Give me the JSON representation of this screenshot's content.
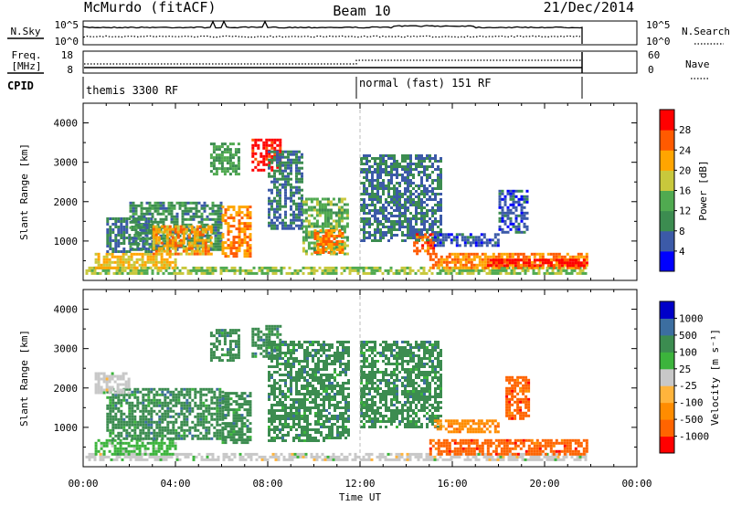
{
  "header": {
    "station": "McMurdo (fitACF)",
    "beam": "Beam 10",
    "date": "21/Dec/2014"
  },
  "noise_panel": {
    "left_label": "N.Sky",
    "right_label": "N.Search",
    "left_ticks": [
      "10^5",
      "10^0"
    ],
    "right_ticks": [
      "10^5",
      "10^0"
    ]
  },
  "freq_panel": {
    "left_label_1": "Freq.",
    "left_label_2": "[MHz]",
    "right_label": "Nave",
    "left_ticks": [
      "18",
      "8"
    ],
    "right_ticks": [
      "60",
      "0"
    ]
  },
  "cpid_panel": {
    "label": "CPID",
    "segments": [
      "themis 3300 RF",
      "normal (fast) 151 RF"
    ]
  },
  "colors": {
    "power": [
      "#0000ff",
      "#3c5aa8",
      "#3c8c50",
      "#50aa50",
      "#c8c83c",
      "#ffa500",
      "#ff5a00",
      "#ff0000"
    ],
    "velocity": [
      "#ff0000",
      "#ff6400",
      "#ff8c00",
      "#ffb43c",
      "#c8c8c8",
      "#3cb43c",
      "#3c8c50",
      "#3c6ea0",
      "#0000c8"
    ]
  },
  "chart_data": [
    {
      "type": "heatmap",
      "name": "power",
      "ylabel": "Slant Range [km]",
      "yticks": [
        "1000",
        "2000",
        "3000",
        "4000"
      ],
      "ylim": [
        0,
        4500
      ],
      "xlim": [
        0,
        24
      ],
      "colorbar": {
        "label": "Power [dB]",
        "ticks": [
          "4",
          "8",
          "12",
          "16",
          "20",
          "24",
          "28"
        ],
        "range": [
          0,
          32
        ]
      },
      "echo_regions": [
        {
          "t0": 0.1,
          "t1": 21.8,
          "r0": 180,
          "r1": 350,
          "value": 16
        },
        {
          "t0": 0.5,
          "t1": 4.0,
          "r0": 350,
          "r1": 700,
          "value": 20
        },
        {
          "t0": 1.0,
          "t1": 3.0,
          "r0": 700,
          "r1": 1600,
          "value": 8
        },
        {
          "t0": 2.0,
          "t1": 6.0,
          "r0": 800,
          "r1": 2000,
          "value": 10
        },
        {
          "t0": 3.0,
          "t1": 5.5,
          "r0": 650,
          "r1": 1400,
          "value": 22
        },
        {
          "t0": 6.0,
          "t1": 7.2,
          "r0": 600,
          "r1": 1900,
          "value": 24
        },
        {
          "t0": 5.5,
          "t1": 6.8,
          "r0": 2700,
          "r1": 3500,
          "value": 12
        },
        {
          "t0": 7.3,
          "t1": 8.5,
          "r0": 2800,
          "r1": 3600,
          "value": 30
        },
        {
          "t0": 8.0,
          "t1": 9.5,
          "r0": 1300,
          "r1": 3300,
          "value": 8
        },
        {
          "t0": 9.5,
          "t1": 11.5,
          "r0": 650,
          "r1": 2100,
          "value": 14
        },
        {
          "t0": 10.0,
          "t1": 11.2,
          "r0": 700,
          "r1": 1300,
          "value": 24
        },
        {
          "t0": 12.0,
          "t1": 15.5,
          "r0": 1000,
          "r1": 3200,
          "value": 8
        },
        {
          "t0": 14.3,
          "t1": 15.2,
          "r0": 700,
          "r1": 1200,
          "value": 26
        },
        {
          "t0": 15.0,
          "t1": 21.8,
          "r0": 350,
          "r1": 700,
          "value": 24
        },
        {
          "t0": 17.5,
          "t1": 21.8,
          "r0": 350,
          "r1": 550,
          "value": 30
        },
        {
          "t0": 15.2,
          "t1": 18.0,
          "r0": 900,
          "r1": 1200,
          "value": 6
        },
        {
          "t0": 18.0,
          "t1": 19.3,
          "r0": 1200,
          "r1": 2300,
          "value": 6
        }
      ]
    },
    {
      "type": "heatmap",
      "name": "velocity",
      "ylabel": "Slant Range [km]",
      "yticks": [
        "1000",
        "2000",
        "3000",
        "4000"
      ],
      "ylim": [
        0,
        4500
      ],
      "xlim": [
        0,
        24
      ],
      "xlabel": "Time UT",
      "xticks": [
        "00:00",
        "04:00",
        "08:00",
        "12:00",
        "16:00",
        "20:00",
        "00:00"
      ],
      "colorbar": {
        "label": "Velocity [m s⁻¹]",
        "ticks": [
          "1000",
          "500",
          "100",
          "25",
          "-25",
          "-100",
          "-500",
          "-1000"
        ]
      },
      "echo_regions": [
        {
          "t0": 0.1,
          "t1": 21.8,
          "r0": 180,
          "r1": 350,
          "value": "-25..25"
        },
        {
          "t0": 0.5,
          "t1": 4.0,
          "r0": 350,
          "r1": 700,
          "value": "25..100"
        },
        {
          "t0": 1.0,
          "t1": 6.0,
          "r0": 700,
          "r1": 2000,
          "value": "100..500"
        },
        {
          "t0": 0.5,
          "t1": 2.0,
          "r0": 1900,
          "r1": 2400,
          "value": "-25..25"
        },
        {
          "t0": 6.0,
          "t1": 7.2,
          "r0": 600,
          "r1": 1900,
          "value": "100..500"
        },
        {
          "t0": 5.5,
          "t1": 6.8,
          "r0": 2700,
          "r1": 3500,
          "value": "100..500"
        },
        {
          "t0": 7.3,
          "t1": 8.5,
          "r0": 2800,
          "r1": 3600,
          "value": "100..500"
        },
        {
          "t0": 8.0,
          "t1": 11.5,
          "r0": 650,
          "r1": 3200,
          "value": "100..500"
        },
        {
          "t0": 12.0,
          "t1": 15.5,
          "r0": 1000,
          "r1": 3200,
          "value": "100..500"
        },
        {
          "t0": 15.0,
          "t1": 21.8,
          "r0": 350,
          "r1": 700,
          "value": "-500..-100"
        },
        {
          "t0": 15.2,
          "t1": 18.0,
          "r0": 900,
          "r1": 1200,
          "value": "-100..-25"
        },
        {
          "t0": 18.3,
          "t1": 19.3,
          "r0": 1200,
          "r1": 2300,
          "value": "-500..-100"
        }
      ]
    }
  ]
}
